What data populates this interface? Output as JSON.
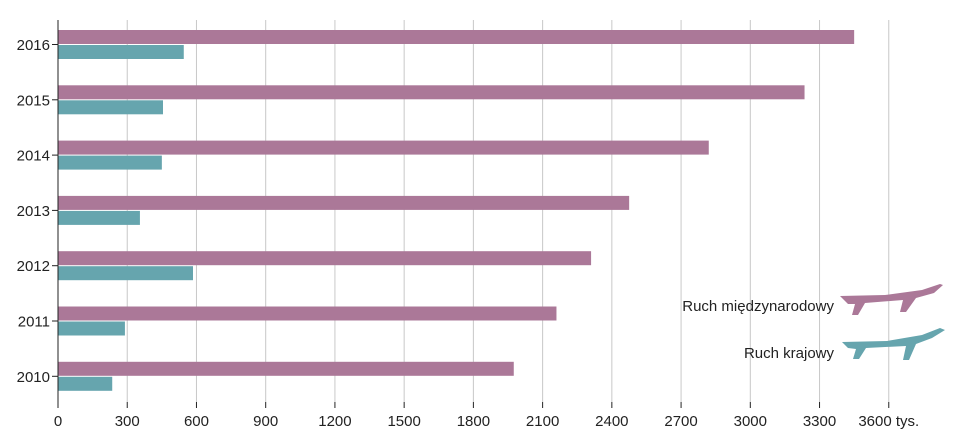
{
  "chart_data": {
    "type": "bar",
    "orientation": "horizontal",
    "categories": [
      "2016",
      "2015",
      "2014",
      "2013",
      "2012",
      "2011",
      "2010"
    ],
    "series": [
      {
        "name": "Ruch międzynarodowy",
        "color": "#ab7898",
        "values": [
          3450,
          3235,
          2820,
          2475,
          2310,
          2160,
          1975
        ]
      },
      {
        "name": "Ruch krajowy",
        "color": "#66a5ae",
        "values": [
          545,
          455,
          450,
          355,
          585,
          290,
          235
        ]
      }
    ],
    "xlim": [
      0,
      3900
    ],
    "xticks": [
      "0",
      "300",
      "600",
      "900",
      "1200",
      "1500",
      "1800",
      "2100",
      "2400",
      "2700",
      "3000",
      "3300",
      "3600 tys."
    ],
    "grid": true,
    "legend_position": "right",
    "legend_icon": "airplane-icon"
  }
}
